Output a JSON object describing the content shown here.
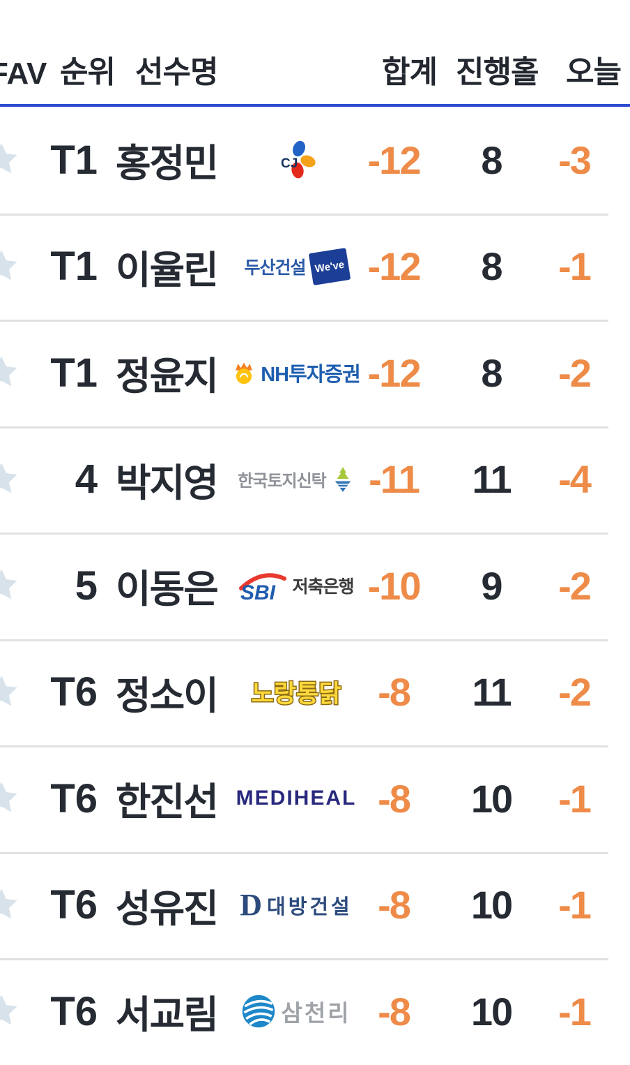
{
  "colors": {
    "accent_blue": "#2b4bd0",
    "score_orange": "#ee8b48",
    "text_dark": "#262b33",
    "separator": "#e1e1e1",
    "star_gray": "#d8e2ea"
  },
  "header": {
    "fav": "FAV",
    "rank": "순위",
    "name": "선수명",
    "total": "합계",
    "holes": "진행홀",
    "today": "오늘"
  },
  "players": [
    {
      "rank": "T1",
      "name": "홍정민",
      "total": "-12",
      "holes": "8",
      "today": "-3",
      "sponsor": {
        "id": "cj",
        "label": "CJ",
        "texts": {
          "main": "CJ"
        }
      }
    },
    {
      "rank": "T1",
      "name": "이율린",
      "total": "-12",
      "holes": "8",
      "today": "-1",
      "sponsor": {
        "id": "doosan",
        "label": "두산건설 We've",
        "texts": {
          "kor": "두산건설",
          "box": "We've"
        }
      }
    },
    {
      "rank": "T1",
      "name": "정윤지",
      "total": "-12",
      "holes": "8",
      "today": "-2",
      "sponsor": {
        "id": "nh",
        "label": "NH투자증권",
        "texts": {
          "main": "NH투자증권"
        }
      }
    },
    {
      "rank": "4",
      "name": "박지영",
      "total": "-11",
      "holes": "11",
      "today": "-4",
      "sponsor": {
        "id": "koreit",
        "label": "한국토지신탁",
        "texts": {
          "main": "한국토지신탁"
        }
      }
    },
    {
      "rank": "5",
      "name": "이동은",
      "total": "-10",
      "holes": "9",
      "today": "-2",
      "sponsor": {
        "id": "sbi",
        "label": "SBI저축은행",
        "texts": {
          "latin": "SBI",
          "kor": "저축은행"
        }
      }
    },
    {
      "rank": "T6",
      "name": "정소이",
      "total": "-8",
      "holes": "11",
      "today": "-2",
      "sponsor": {
        "id": "norang",
        "label": "노랑통닭",
        "texts": {
          "main": "노랑통닭"
        }
      }
    },
    {
      "rank": "T6",
      "name": "한진선",
      "total": "-8",
      "holes": "10",
      "today": "-1",
      "sponsor": {
        "id": "mediheal",
        "label": "MEDIHEAL",
        "texts": {
          "main": "MEDIHEAL"
        }
      }
    },
    {
      "rank": "T6",
      "name": "성유진",
      "total": "-8",
      "holes": "10",
      "today": "-1",
      "sponsor": {
        "id": "daebang",
        "label": "대방건설",
        "texts": {
          "d": "D",
          "kor": "대방건설"
        }
      }
    },
    {
      "rank": "T6",
      "name": "서교림",
      "total": "-8",
      "holes": "10",
      "today": "-1",
      "sponsor": {
        "id": "samchully",
        "label": "삼천리",
        "texts": {
          "main": "삼천리"
        }
      }
    }
  ]
}
